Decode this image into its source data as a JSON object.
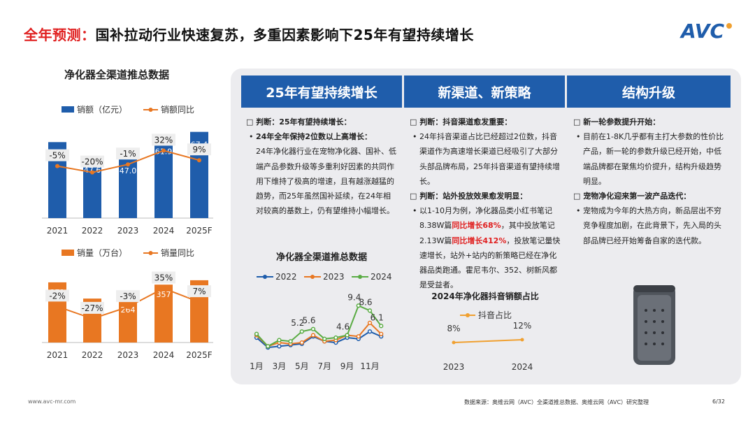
{
  "header": {
    "title_highlight": "全年预测：",
    "title_rest": "国补拉动行业快速复苏，多重因素影响下25年有望持续增长",
    "logo_text": "AVC"
  },
  "left": {
    "title": "净化器全渠道推总数据"
  },
  "chart_data": [
    {
      "type": "bar",
      "categories": [
        "2021",
        "2022",
        "2023",
        "2024",
        "2025F"
      ],
      "series": [
        {
          "name": "销额（亿元）",
          "values": [
            59.4,
            47.6,
            47.0,
            61.9,
            67.4
          ]
        },
        {
          "name": "销额同比",
          "values": [
            -5,
            -20,
            -1,
            32,
            9
          ],
          "labels": [
            "-5%",
            "-20%",
            "-1%",
            "32%",
            "9%"
          ]
        }
      ],
      "colors": {
        "bar": "#1f5dab",
        "line": "#e87722"
      }
    },
    {
      "type": "bar",
      "categories": [
        "2021",
        "2022",
        "2023",
        "2024",
        "2025F"
      ],
      "series": [
        {
          "name": "销量（万台）",
          "values": [
            371,
            271,
            264,
            357,
            384
          ]
        },
        {
          "name": "销量同比",
          "values": [
            -2,
            -27,
            -3,
            35,
            7
          ],
          "labels": [
            "-2%",
            "-27%",
            "-3%",
            "35%",
            "7%"
          ]
        }
      ],
      "colors": {
        "bar": "#e87722",
        "line": "#e87722"
      }
    },
    {
      "type": "line",
      "title": "净化器全渠道推总数据",
      "x": [
        "1月",
        "2月",
        "3月",
        "4月",
        "5月",
        "6月",
        "7月",
        "8月",
        "9月",
        "10月",
        "11月",
        "12月"
      ],
      "x_tick_labels": [
        "1月",
        "3月",
        "5月",
        "7月",
        "9月",
        "11月"
      ],
      "series": [
        {
          "name": "2022",
          "values": [
            4.2,
            2.6,
            2.8,
            3.0,
            3.2,
            4.4,
            3.6,
            3.4,
            4.2,
            4.0,
            5.2,
            4.4
          ],
          "color": "#1f5dab"
        },
        {
          "name": "2023",
          "values": [
            4.6,
            2.8,
            3.4,
            3.2,
            3.4,
            4.6,
            3.6,
            3.8,
            4.6,
            4.4,
            6.6,
            4.8
          ],
          "color": "#e87722"
        },
        {
          "name": "2024",
          "values": [
            4.8,
            2.8,
            3.8,
            3.6,
            5.2,
            5.6,
            4.0,
            4.2,
            4.6,
            9.4,
            8.6,
            6.1
          ],
          "color": "#5aac44"
        }
      ],
      "data_labels": [
        {
          "series": "2024",
          "index": 4,
          "text": "5.2"
        },
        {
          "series": "2024",
          "index": 5,
          "text": "5.6"
        },
        {
          "series": "2024",
          "index": 8,
          "text": "4.6"
        },
        {
          "series": "2024",
          "index": 9,
          "text": "9.4"
        },
        {
          "series": "2024",
          "index": 10,
          "text": "8.6"
        },
        {
          "series": "2024",
          "index": 11,
          "text": "6.1"
        }
      ],
      "ylim": [
        0,
        12
      ]
    },
    {
      "type": "line",
      "title": "2024年净化器抖音销额占比",
      "x": [
        "2023",
        "2024"
      ],
      "series": [
        {
          "name": "抖音占比",
          "values": [
            8,
            12
          ],
          "labels": [
            "8%",
            "12%"
          ],
          "color": "#f0a030"
        }
      ],
      "ylim": [
        0,
        30
      ]
    }
  ],
  "columns": [
    {
      "head": "25年有望持续增长",
      "h1": "判断：25年有望持续增长：",
      "b1_title": "24年全年保持2位数以上高增长：",
      "b1_text": "24年净化器行业在宠物净化器、国补、低端产品参数升级等多重利好因素的共同作用下维持了极高的增速，且有越涨越猛的趋势，而25年虽然国补延续，在24年相对较高的基数上，仍有望维持小幅增长。"
    },
    {
      "head": "新渠道、新策略",
      "h1": "判断：抖音渠道愈发重要：",
      "b1_text": "24年抖音渠道占比已经超过2位数，抖音渠道作为高速增长渠道已经吸引了大部分头部品牌布局，25年抖音渠道有望持续增长。",
      "h2": "判断：站外投放效果愈发明显：",
      "b2_a": "以1-10月为例，净化器品类小红书笔记8.38W篇",
      "b2_red1": "同比增长68%",
      "b2_b": "，其中投放笔记2.13W篇",
      "b2_red2": "同比增长412%",
      "b2_c": "，投放笔记量快速增长，站外+站内的新策略已经在净化器品类跑通。霍尼韦尔、352、树新风都是受益者。"
    },
    {
      "head": "结构升级",
      "h1": "新一轮参数提升开始：",
      "b1_text": "目前在1-8K几乎都有主打大参数的性价比产品，新一轮的参数升级已经开始，中低端品牌都在聚焦均价提升，结构升级趋势明显。",
      "h2": "宠物净化迎来第一波产品迭代：",
      "b2_text": "宠物成为今年的大热方向，新品层出不穷竞争程度加剧，在此背景下，先入局的头部品牌已经开始筹备自家的迭代款。"
    }
  ],
  "footer": {
    "website": "www.avc-mr.com",
    "source": "数据来源：奥维云网（AVC）全渠道推总数据、奥维云网（AVC）研究整理",
    "page": "6/32"
  },
  "icons": {
    "product": "air-purifier-image"
  }
}
